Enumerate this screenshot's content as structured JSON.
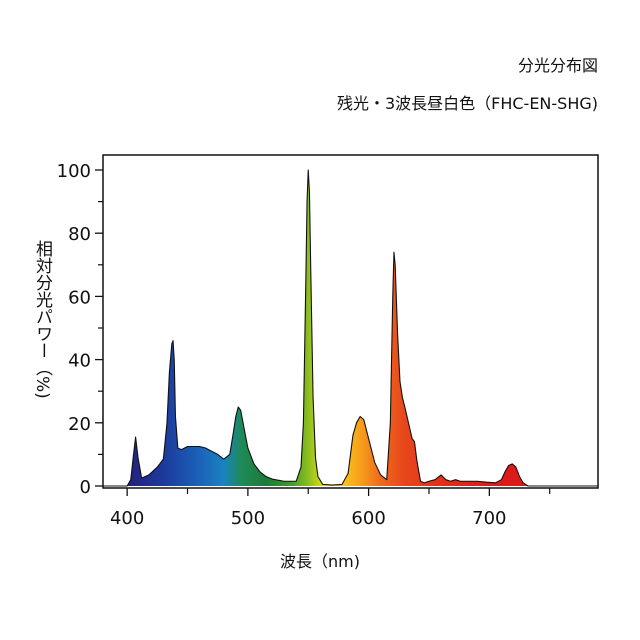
{
  "chart_data": {
    "type": "area",
    "title": "分光分布図",
    "subtitle": "残光・3波長昼白色（FHC-EN-SHG)",
    "xlabel": "波長（nm)",
    "ylabel": "相対分光パワー（%)",
    "xlim": [
      380,
      790
    ],
    "ylim": [
      0,
      100
    ],
    "x_ticks": [
      400,
      500,
      600,
      700
    ],
    "y_ticks": [
      0,
      20,
      40,
      60,
      80,
      100
    ],
    "grid": false,
    "series": [
      {
        "x": [
          380,
          400,
          403,
          405,
          407,
          409,
          412,
          418,
          425,
          430,
          433,
          435,
          437,
          438,
          439,
          440,
          442,
          445,
          450,
          455,
          460,
          465,
          470,
          475,
          480,
          485,
          488,
          490,
          492,
          494,
          496,
          500,
          505,
          510,
          515,
          520,
          530,
          540,
          544,
          546,
          548,
          549,
          550,
          551,
          552,
          554,
          556,
          558,
          562,
          570,
          578,
          583,
          587,
          590,
          593,
          596,
          600,
          605,
          610,
          615,
          618,
          620,
          621,
          622,
          624,
          626,
          628,
          630,
          633,
          636,
          638,
          640,
          643,
          646,
          650,
          655,
          660,
          664,
          668,
          672,
          676,
          680,
          690,
          698,
          705,
          710,
          713,
          716,
          719,
          722,
          725,
          728,
          732,
          760,
          790
        ],
        "y": [
          0,
          0,
          2,
          9,
          15.5,
          9,
          2.5,
          3.5,
          6,
          8.5,
          20,
          36,
          45,
          46,
          40,
          22,
          12,
          11.5,
          12.5,
          12.5,
          12.5,
          12,
          11,
          10,
          8.5,
          10,
          17,
          22,
          25,
          24,
          20,
          12,
          7,
          4.5,
          3,
          2.2,
          1.5,
          1.5,
          6,
          20,
          65,
          90,
          100,
          93,
          70,
          28,
          9,
          3,
          0.5,
          0.3,
          0.5,
          4,
          16,
          20,
          22,
          21,
          15,
          7.5,
          3.5,
          2,
          20,
          60,
          74,
          70,
          48,
          33,
          28,
          25,
          20,
          15,
          14,
          8,
          1.5,
          1,
          1.5,
          2,
          3.5,
          2,
          1.5,
          2,
          1.5,
          1.5,
          1.5,
          1.2,
          1,
          2,
          4.5,
          6.5,
          7,
          6,
          3,
          1,
          0,
          0,
          0
        ]
      }
    ],
    "colors": {
      "line": "#111111",
      "gradient": [
        {
          "nm": 400,
          "color": "#25207a"
        },
        {
          "nm": 430,
          "color": "#1c3a9c"
        },
        {
          "nm": 460,
          "color": "#1b62b8"
        },
        {
          "nm": 480,
          "color": "#1a83c0"
        },
        {
          "nm": 495,
          "color": "#1e8a55"
        },
        {
          "nm": 515,
          "color": "#1d7a3a"
        },
        {
          "nm": 535,
          "color": "#3d9a2c"
        },
        {
          "nm": 550,
          "color": "#8cbe1f"
        },
        {
          "nm": 565,
          "color": "#f4e310"
        },
        {
          "nm": 580,
          "color": "#f8c21b"
        },
        {
          "nm": 595,
          "color": "#f59a1c"
        },
        {
          "nm": 610,
          "color": "#ee6a1c"
        },
        {
          "nm": 630,
          "color": "#e8461c"
        },
        {
          "nm": 660,
          "color": "#e23019"
        },
        {
          "nm": 700,
          "color": "#dd1a1a"
        },
        {
          "nm": 740,
          "color": "#d91b1b"
        }
      ]
    }
  }
}
